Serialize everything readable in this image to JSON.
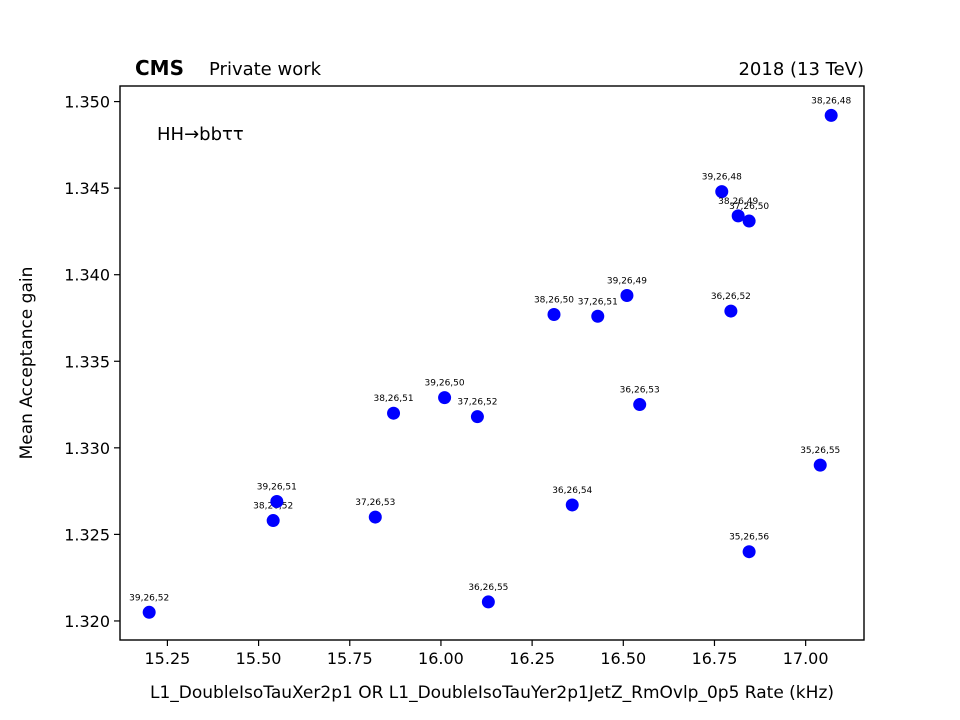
{
  "chart_data": {
    "type": "scatter",
    "header": {
      "experiment": "CMS",
      "status": "Private work",
      "lumi": "2018 (13 TeV)"
    },
    "annotation": "HH→bbττ",
    "xlabel": "L1_DoubleIsoTauXer2p1 OR L1_DoubleIsoTauYer2p1JetZ_RmOvlp_0p5 Rate (kHz)",
    "ylabel": "Mean Acceptance gain",
    "xlim": [
      15.12,
      17.16
    ],
    "ylim": [
      1.3189,
      1.3509
    ],
    "xticks": [
      "15.25",
      "15.50",
      "15.75",
      "16.00",
      "16.25",
      "16.50",
      "16.75",
      "17.00"
    ],
    "yticks": [
      "1.320",
      "1.325",
      "1.330",
      "1.335",
      "1.340",
      "1.345",
      "1.350"
    ],
    "marker_color": "#0000ff",
    "points": [
      {
        "x": 15.2,
        "y": 1.3205,
        "label": "39,26,52"
      },
      {
        "x": 15.54,
        "y": 1.3258,
        "label": "38,26,52"
      },
      {
        "x": 15.55,
        "y": 1.3269,
        "label": "39,26,51"
      },
      {
        "x": 15.82,
        "y": 1.326,
        "label": "37,26,53"
      },
      {
        "x": 15.87,
        "y": 1.332,
        "label": "38,26,51"
      },
      {
        "x": 16.01,
        "y": 1.3329,
        "label": "39,26,50"
      },
      {
        "x": 16.1,
        "y": 1.3318,
        "label": "37,26,52"
      },
      {
        "x": 16.13,
        "y": 1.3211,
        "label": "36,26,55"
      },
      {
        "x": 16.31,
        "y": 1.3377,
        "label": "38,26,50"
      },
      {
        "x": 16.36,
        "y": 1.3267,
        "label": "36,26,54"
      },
      {
        "x": 16.43,
        "y": 1.3376,
        "label": "37,26,51"
      },
      {
        "x": 16.51,
        "y": 1.3388,
        "label": "39,26,49"
      },
      {
        "x": 16.545,
        "y": 1.3325,
        "label": "36,26,53"
      },
      {
        "x": 16.77,
        "y": 1.3448,
        "label": "39,26,48"
      },
      {
        "x": 16.795,
        "y": 1.3379,
        "label": "36,26,52"
      },
      {
        "x": 16.815,
        "y": 1.3434,
        "label": "38,26,49"
      },
      {
        "x": 16.845,
        "y": 1.3431,
        "label": "37,26,50"
      },
      {
        "x": 16.845,
        "y": 1.324,
        "label": "35,26,56"
      },
      {
        "x": 17.04,
        "y": 1.329,
        "label": "35,26,55"
      },
      {
        "x": 17.07,
        "y": 1.3492,
        "label": "38,26,48"
      }
    ]
  }
}
